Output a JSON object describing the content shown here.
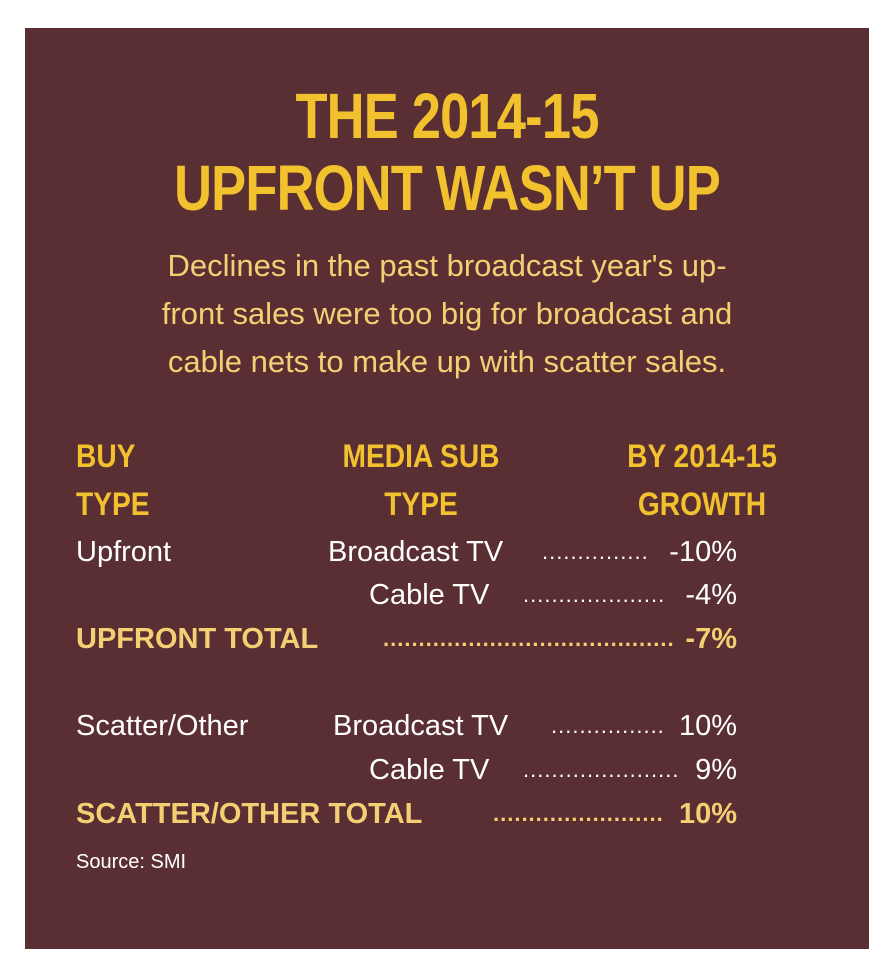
{
  "colors": {
    "background": "#5a2f33",
    "title": "#f2c12e",
    "subtitle": "#f4cf73",
    "body_text": "#ffffff",
    "total_text": "#f4cf73"
  },
  "title_lines": [
    "THE 2014-15",
    "UPFRONT WASN’T UP"
  ],
  "subtitle_lines": [
    "Declines in the past broadcast year's up-",
    "front sales were too big for broadcast and",
    "cable nets to make up with scatter sales."
  ],
  "source": "Source: SMI",
  "chart_data": {
    "type": "table",
    "columns": [
      {
        "line1": "BUY",
        "line2": "TYPE"
      },
      {
        "line1": "MEDIA SUB",
        "line2": "TYPE"
      },
      {
        "line1": "BY 2014-15",
        "line2": "GROWTH"
      }
    ],
    "rows": [
      {
        "buy_type": "Upfront",
        "media_sub_type": "Broadcast TV",
        "growth": "-10%",
        "growth_value": -10
      },
      {
        "buy_type": "",
        "media_sub_type": "Cable TV",
        "growth": "-4%",
        "growth_value": -4
      },
      {
        "buy_type": "UPFRONT TOTAL",
        "media_sub_type": "",
        "growth": "-7%",
        "growth_value": -7,
        "is_total": true
      },
      {
        "buy_type": "Scatter/Other",
        "media_sub_type": "Broadcast TV",
        "growth": "10%",
        "growth_value": 10
      },
      {
        "buy_type": "",
        "media_sub_type": "Cable TV",
        "growth": "9%",
        "growth_value": 9
      },
      {
        "buy_type": "SCATTER/OTHER TOTAL",
        "media_sub_type": "",
        "growth": "10%",
        "growth_value": 10,
        "is_total": true
      }
    ]
  }
}
